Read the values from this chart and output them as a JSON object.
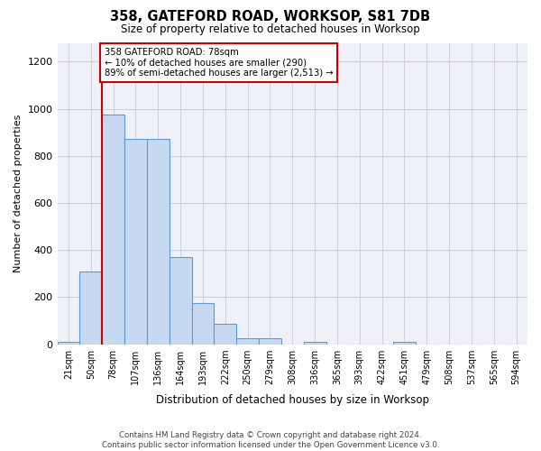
{
  "title": "358, GATEFORD ROAD, WORKSOP, S81 7DB",
  "subtitle": "Size of property relative to detached houses in Worksop",
  "xlabel": "Distribution of detached houses by size in Worksop",
  "ylabel": "Number of detached properties",
  "categories": [
    "21sqm",
    "50sqm",
    "78sqm",
    "107sqm",
    "136sqm",
    "164sqm",
    "193sqm",
    "222sqm",
    "250sqm",
    "279sqm",
    "308sqm",
    "336sqm",
    "365sqm",
    "393sqm",
    "422sqm",
    "451sqm",
    "479sqm",
    "508sqm",
    "537sqm",
    "565sqm",
    "594sqm"
  ],
  "values": [
    10,
    310,
    975,
    870,
    870,
    370,
    175,
    85,
    25,
    25,
    0,
    10,
    0,
    0,
    0,
    10,
    0,
    0,
    0,
    0,
    0
  ],
  "bar_color": "#c6d9f0",
  "bar_edge_color": "#5b9bd5",
  "marker_index": 2,
  "marker_color": "#cc0000",
  "annotation_text": "358 GATEFORD ROAD: 78sqm\n← 10% of detached houses are smaller (290)\n89% of semi-detached houses are larger (2,513) →",
  "annotation_box_color": "#cc0000",
  "ylim": [
    0,
    1280
  ],
  "yticks": [
    0,
    200,
    400,
    600,
    800,
    1000,
    1200
  ],
  "background_color": "#ffffff",
  "grid_color": "#d0d0d8",
  "footer": "Contains HM Land Registry data © Crown copyright and database right 2024.\nContains public sector information licensed under the Open Government Licence v3.0."
}
